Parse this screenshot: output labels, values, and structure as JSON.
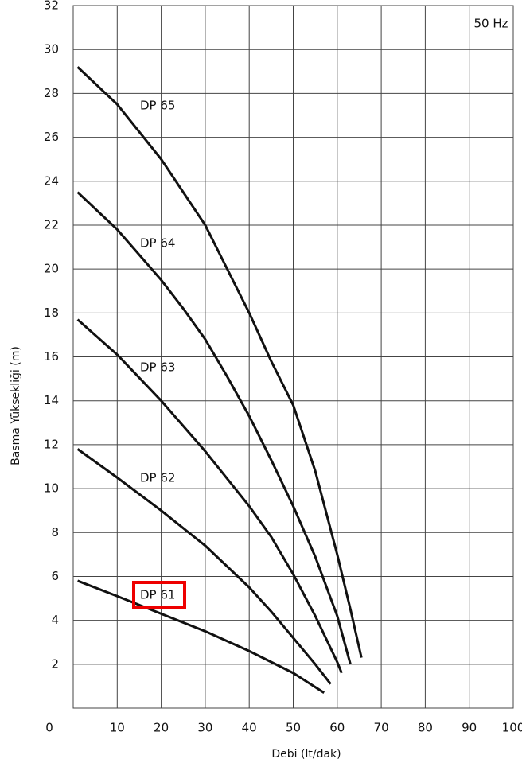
{
  "chart_data": {
    "type": "line",
    "annotation": "50 Hz",
    "x_label": "Debi (lt/dak)",
    "y_label": "Basma Yüksekliği (m)",
    "xlim": [
      0,
      100
    ],
    "xticks": [
      0,
      10,
      20,
      30,
      40,
      50,
      60,
      70,
      80,
      90,
      100
    ],
    "ylim": [
      0,
      32
    ],
    "yticks": [
      2,
      4,
      6,
      8,
      10,
      12,
      14,
      16,
      18,
      20,
      22,
      24,
      26,
      28,
      30,
      32
    ],
    "grid": true,
    "highlighted": "DP 61",
    "series": [
      {
        "name": "DP 65",
        "color": "#111111",
        "x": [
          1,
          10,
          20,
          30,
          35,
          40,
          45,
          50,
          55,
          60,
          63,
          65.5
        ],
        "values": [
          29.2,
          27.5,
          25,
          22,
          20,
          18,
          15.8,
          13.8,
          10.8,
          7,
          4.5,
          2.3
        ]
      },
      {
        "name": "DP 64",
        "color": "#111111",
        "x": [
          1,
          10,
          20,
          25,
          30,
          35,
          40,
          45,
          50,
          55,
          60,
          63
        ],
        "values": [
          23.5,
          21.8,
          19.5,
          18.2,
          16.8,
          15.1,
          13.3,
          11.3,
          9.2,
          6.9,
          4.2,
          2
        ]
      },
      {
        "name": "DP 63",
        "color": "#111111",
        "x": [
          1,
          10,
          20,
          30,
          40,
          45,
          50,
          55,
          60,
          61
        ],
        "values": [
          17.7,
          16.1,
          14,
          11.7,
          9.2,
          7.8,
          6.1,
          4.2,
          2.1,
          1.6
        ]
      },
      {
        "name": "DP 62",
        "color": "#111111",
        "x": [
          1,
          10,
          20,
          30,
          40,
          45,
          50,
          55,
          58.5
        ],
        "values": [
          11.8,
          10.5,
          9,
          7.4,
          5.5,
          4.4,
          3.2,
          2,
          1.1
        ]
      },
      {
        "name": "DP 61",
        "color": "#111111",
        "x": [
          1,
          10,
          20,
          30,
          40,
          50,
          57
        ],
        "values": [
          5.8,
          5.1,
          4.3,
          3.5,
          2.6,
          1.6,
          0.7
        ]
      }
    ]
  }
}
